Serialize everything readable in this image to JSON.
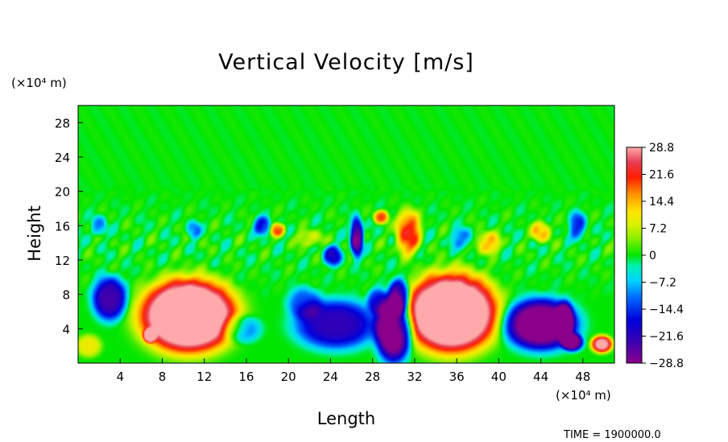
{
  "chart_data": {
    "type": "heatmap",
    "title": "Vertical Velocity [m/s]",
    "xlabel": "Length",
    "ylabel": "Height",
    "x_unit": "(×10⁴ m)",
    "y_unit": "(×10⁴ m)",
    "xlim": [
      0,
      51
    ],
    "ylim": [
      0,
      30
    ],
    "x_ticks": [
      4,
      8,
      12,
      16,
      20,
      24,
      28,
      32,
      36,
      40,
      44,
      48
    ],
    "y_ticks": [
      4,
      8,
      12,
      16,
      20,
      24,
      28
    ],
    "x_tick_labels": [
      "4",
      "8",
      "12",
      "16",
      "20",
      "24",
      "28",
      "32",
      "36",
      "40",
      "44",
      "48"
    ],
    "y_tick_labels": [
      "4",
      "8",
      "12",
      "16",
      "20",
      "24",
      "28"
    ],
    "colorbar": {
      "range": [
        -28.8,
        28.8
      ],
      "ticks": [
        28.8,
        21.6,
        14.4,
        7.2,
        0,
        -7.2,
        -14.4,
        -21.6,
        -28.8
      ],
      "tick_labels": [
        "28.8",
        "21.6",
        "14.4",
        "7.2",
        "0",
        "−7.2",
        "−14.4",
        "−21.6",
        "−28.8"
      ]
    },
    "time_label": "TIME = 1900000.0",
    "features": [
      {
        "x": 10.5,
        "y": 5.5,
        "rx": 4.6,
        "ry": 4.3,
        "w": 40
      },
      {
        "x": 35.5,
        "y": 5.8,
        "rx": 4.4,
        "ry": 4.6,
        "w": 40
      },
      {
        "x": 3.0,
        "y": 7.5,
        "rx": 1.6,
        "ry": 2.5,
        "w": -24
      },
      {
        "x": 6.8,
        "y": 3.2,
        "rx": 0.6,
        "ry": 0.8,
        "w": 24
      },
      {
        "x": 24.5,
        "y": 4.5,
        "rx": 3.8,
        "ry": 2.8,
        "w": -22
      },
      {
        "x": 21.5,
        "y": 7.0,
        "rx": 1.6,
        "ry": 1.8,
        "w": -12
      },
      {
        "x": 30.0,
        "y": 3.8,
        "rx": 1.7,
        "ry": 3.6,
        "w": -34
      },
      {
        "x": 30.5,
        "y": 7.8,
        "rx": 1.0,
        "ry": 2.0,
        "w": -26
      },
      {
        "x": 28.5,
        "y": 7.2,
        "rx": 1.0,
        "ry": 1.5,
        "w": -16
      },
      {
        "x": 44.0,
        "y": 4.5,
        "rx": 3.4,
        "ry": 2.9,
        "w": -34
      },
      {
        "x": 47.0,
        "y": 2.4,
        "rx": 1.0,
        "ry": 1.0,
        "w": -28
      },
      {
        "x": 46.3,
        "y": 5.0,
        "rx": 0.8,
        "ry": 2.2,
        "w": -20
      },
      {
        "x": 49.8,
        "y": 2.2,
        "rx": 1.0,
        "ry": 1.0,
        "w": 30
      },
      {
        "x": 15.5,
        "y": 4.0,
        "rx": 1.8,
        "ry": 1.6,
        "w": -12
      },
      {
        "x": 26.5,
        "y": 14.6,
        "rx": 0.6,
        "ry": 2.3,
        "w": -28
      },
      {
        "x": 31.4,
        "y": 15.2,
        "rx": 1.2,
        "ry": 2.6,
        "w": 20
      },
      {
        "x": 28.8,
        "y": 17.0,
        "rx": 0.7,
        "ry": 0.8,
        "w": 18
      },
      {
        "x": 19.0,
        "y": 15.5,
        "rx": 0.7,
        "ry": 0.8,
        "w": 18
      },
      {
        "x": 24.2,
        "y": 12.5,
        "rx": 0.9,
        "ry": 1.2,
        "w": -18
      },
      {
        "x": 17.5,
        "y": 16.0,
        "rx": 0.8,
        "ry": 1.1,
        "w": -16
      },
      {
        "x": 39.0,
        "y": 14.0,
        "rx": 1.1,
        "ry": 1.3,
        "w": 14
      },
      {
        "x": 44.0,
        "y": 15.3,
        "rx": 0.9,
        "ry": 1.2,
        "w": 14
      },
      {
        "x": 47.5,
        "y": 16.0,
        "rx": 0.8,
        "ry": 1.6,
        "w": -14
      },
      {
        "x": 11.0,
        "y": 15.5,
        "rx": 0.7,
        "ry": 1.0,
        "w": -10
      },
      {
        "x": 2.0,
        "y": 16.0,
        "rx": 0.7,
        "ry": 1.2,
        "w": -10
      },
      {
        "x": 36.5,
        "y": 14.5,
        "rx": 1.0,
        "ry": 1.2,
        "w": -10
      },
      {
        "x": 22.0,
        "y": 14.5,
        "rx": 1.2,
        "ry": 1.0,
        "w": 8
      },
      {
        "x": 1.0,
        "y": 2.0,
        "rx": 1.2,
        "ry": 1.3,
        "w": 10
      }
    ]
  }
}
